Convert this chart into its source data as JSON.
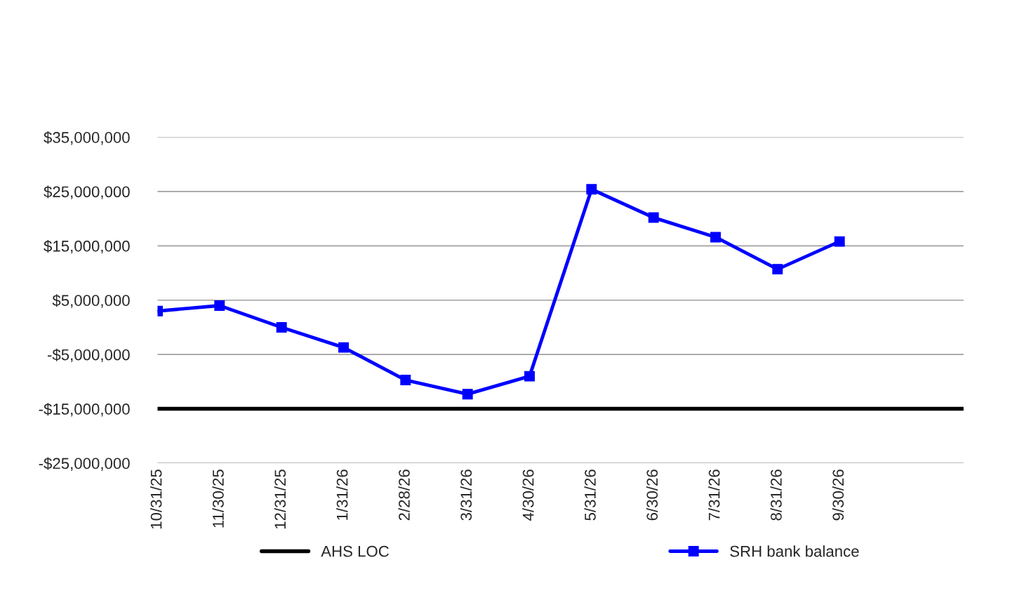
{
  "chart_data": {
    "type": "line",
    "categories": [
      "10/31/25",
      "11/30/25",
      "12/31/25",
      "1/31/26",
      "2/28/26",
      "3/31/26",
      "4/30/26",
      "5/31/26",
      "6/30/26",
      "7/31/26",
      "8/31/26",
      "9/30/26",
      null,
      null
    ],
    "series": [
      {
        "name": "AHS LOC",
        "color": "#000000",
        "marker": "none",
        "values": [
          -15000000,
          -15000000,
          -15000000,
          -15000000,
          -15000000,
          -15000000,
          -15000000,
          -15000000,
          -15000000,
          -15000000,
          -15000000,
          -15000000,
          -15000000,
          -15000000
        ]
      },
      {
        "name": "SRH bank balance",
        "color": "#0000ff",
        "marker": "square",
        "values": [
          3000000,
          4000000,
          0,
          -3700000,
          -9700000,
          -12300000,
          -9000000,
          25400000,
          20200000,
          16600000,
          10700000,
          15800000,
          null,
          null
        ]
      }
    ],
    "ylim": [
      -25000000,
      35000000
    ],
    "yticks": [
      {
        "value": -25000000,
        "label": "-$25,000,000"
      },
      {
        "value": -15000000,
        "label": "-$15,000,000"
      },
      {
        "value": -5000000,
        "label": "-$5,000,000"
      },
      {
        "value": 5000000,
        "label": "$5,000,000"
      },
      {
        "value": 15000000,
        "label": "$15,000,000"
      },
      {
        "value": 25000000,
        "label": "$25,000,000"
      },
      {
        "value": 35000000,
        "label": "$35,000,000"
      }
    ],
    "grid": "y",
    "legend": "bottom"
  }
}
